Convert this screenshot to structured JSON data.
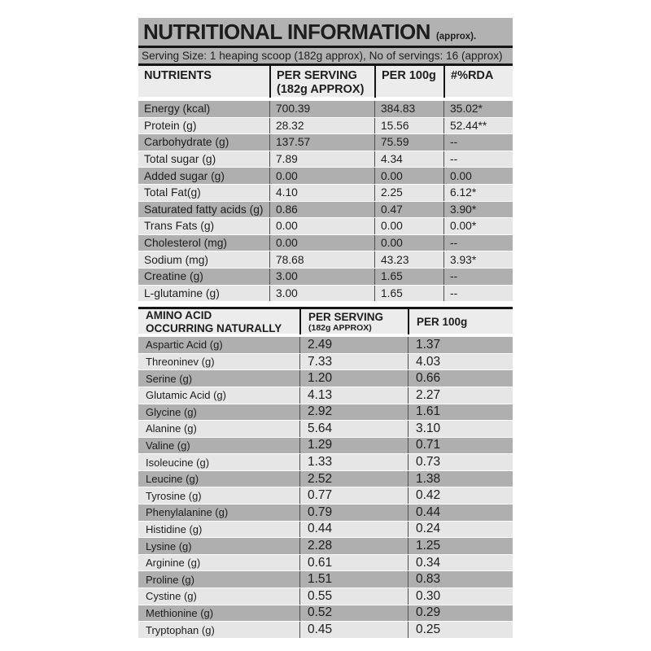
{
  "colors": {
    "band_gray": "#b2b2b2",
    "row_dark": "#afafaf",
    "row_light": "#e6e6e6",
    "header_bg": "#ececec",
    "line_black": "#151515",
    "cell_sep": "#4d4d4d",
    "text": "#1d1d1d"
  },
  "title": {
    "text": "NUTRITIONAL INFORMATION",
    "suffix": "(approx)."
  },
  "serving_line": "Serving Size: 1 heaping scoop (182g approx), No of servings: 16 (approx)",
  "nutrients_table": {
    "headers": {
      "col1": "NUTRIENTS",
      "col2_line1": "PER SERVING",
      "col2_line2": "(182g  APPROX)",
      "col3": "PER 100g",
      "col4": "#%RDA"
    },
    "rows": [
      {
        "name": "Energy (kcal)",
        "per_serving": "700.39",
        "per_100g": "384.83",
        "rda": "35.02*"
      },
      {
        "name": "Protein (g)",
        "per_serving": "28.32",
        "per_100g": "15.56",
        "rda": "52.44**"
      },
      {
        "name": "Carbohydrate (g)",
        "per_serving": "137.57",
        "per_100g": "75.59",
        "rda": "--"
      },
      {
        "name": "Total sugar (g)",
        "per_serving": "7.89",
        "per_100g": "4.34",
        "rda": "--"
      },
      {
        "name": "Added sugar (g)",
        "per_serving": "0.00",
        "per_100g": "0.00",
        "rda": "0.00"
      },
      {
        "name": "Total Fat(g)",
        "per_serving": "4.10",
        "per_100g": "2.25",
        "rda": "6.12*"
      },
      {
        "name": "Saturated fatty acids (g)",
        "per_serving": "0.86",
        "per_100g": "0.47",
        "rda": "3.90*"
      },
      {
        "name": "Trans Fats (g)",
        "per_serving": "0.00",
        "per_100g": "0.00",
        "rda": "0.00*"
      },
      {
        "name": "Cholesterol (mg)",
        "per_serving": "0.00",
        "per_100g": "0.00",
        "rda": "--"
      },
      {
        "name": "Sodium (mg)",
        "per_serving": "78.68",
        "per_100g": "43.23",
        "rda": "3.93*"
      },
      {
        "name": "Creatine (g)",
        "per_serving": "3.00",
        "per_100g": "1.65",
        "rda": "--"
      },
      {
        "name": "L-glutamine (g)",
        "per_serving": "3.00",
        "per_100g": "1.65",
        "rda": "--"
      }
    ]
  },
  "amino_table": {
    "headers": {
      "col1_line1": "AMINO ACID",
      "col1_line2": "OCCURRING NATURALLY",
      "col2_line1": "PER SERVING",
      "col2_line2": "(182g  APPROX)",
      "col3": "PER 100g"
    },
    "rows": [
      {
        "name": "Aspartic Acid (g)",
        "per_serving": "2.49",
        "per_100g": "1.37"
      },
      {
        "name": "Threoninev (g)",
        "per_serving": "7.33",
        "per_100g": "4.03"
      },
      {
        "name": "Serine (g)",
        "per_serving": "1.20",
        "per_100g": "0.66"
      },
      {
        "name": "Glutamic Acid (g)",
        "per_serving": "4.13",
        "per_100g": "2.27"
      },
      {
        "name": "Glycine (g)",
        "per_serving": "2.92",
        "per_100g": "1.61"
      },
      {
        "name": "Alanine (g)",
        "per_serving": "5.64",
        "per_100g": "3.10"
      },
      {
        "name": "Valine (g)",
        "per_serving": "1.29",
        "per_100g": "0.71"
      },
      {
        "name": "Isoleucine (g)",
        "per_serving": "1.33",
        "per_100g": "0.73"
      },
      {
        "name": "Leucine (g)",
        "per_serving": "2.52",
        "per_100g": "1.38"
      },
      {
        "name": "Tyrosine (g)",
        "per_serving": "0.77",
        "per_100g": "0.42"
      },
      {
        "name": "Phenylalanine (g)",
        "per_serving": "0.79",
        "per_100g": "0.44"
      },
      {
        "name": "Histidine (g)",
        "per_serving": "0.44",
        "per_100g": "0.24"
      },
      {
        "name": "Lysine (g)",
        "per_serving": "2.28",
        "per_100g": "1.25"
      },
      {
        "name": "Arginine (g)",
        "per_serving": "0.61",
        "per_100g": "0.34"
      },
      {
        "name": "Proline (g)",
        "per_serving": "1.51",
        "per_100g": "0.83"
      },
      {
        "name": "Cystine (g)",
        "per_serving": "0.55",
        "per_100g": "0.30"
      },
      {
        "name": "Methionine (g)",
        "per_serving": "0.52",
        "per_100g": "0.29"
      },
      {
        "name": "Tryptophan (g)",
        "per_serving": "0.45",
        "per_100g": "0.25"
      }
    ]
  }
}
